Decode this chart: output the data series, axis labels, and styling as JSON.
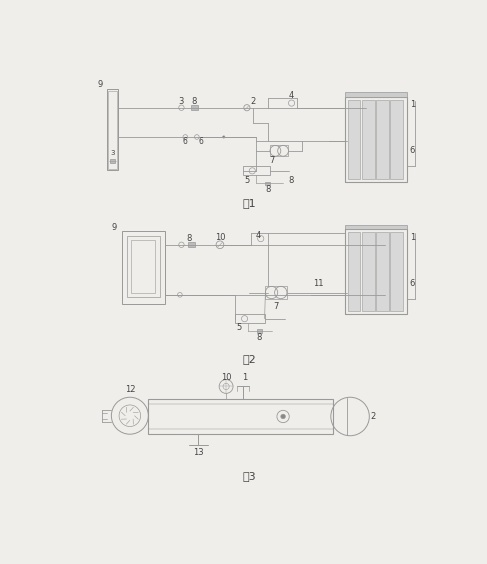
{
  "bg_color": "#f0eeeb",
  "line_color": "#999999",
  "dark_line": "#555555",
  "fig1_label": "图1",
  "fig2_label": "图2",
  "fig3_label": "图3",
  "label_fontsize": 7,
  "num_fontsize": 6
}
